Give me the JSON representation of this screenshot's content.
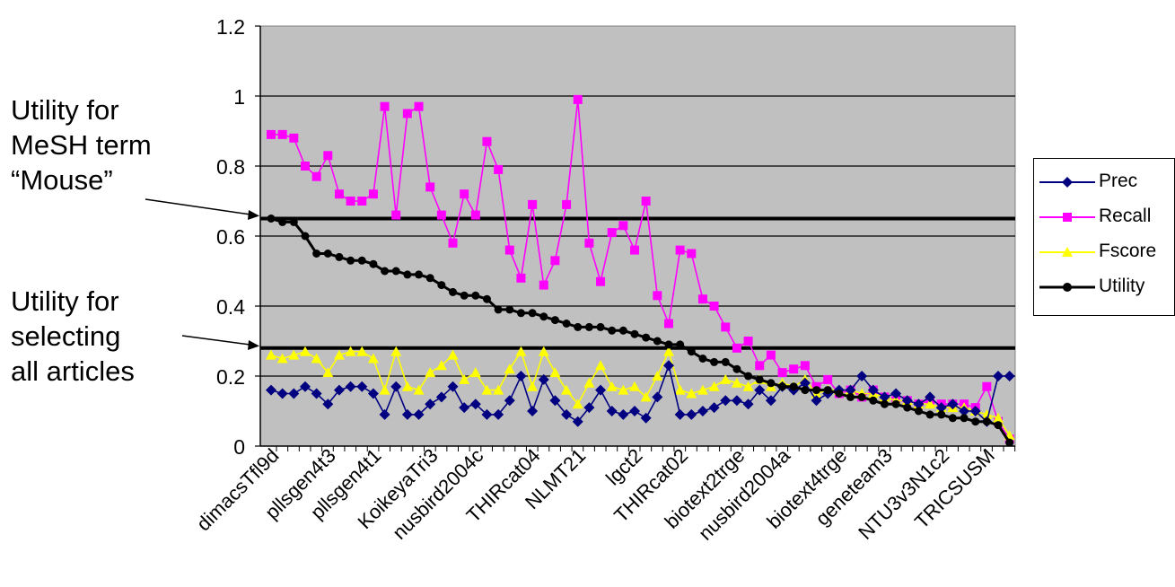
{
  "annotations": {
    "mesh_mouse": "Utility for\nMeSH term\n“Mouse”",
    "all_articles": "Utility for\nselecting\nall articles"
  },
  "chart_data": {
    "type": "line",
    "ylim": [
      0,
      1.2
    ],
    "yticks": [
      "0",
      "0.2",
      "0.4",
      "0.6",
      "0.8",
      "1",
      "1.2"
    ],
    "grid": true,
    "legend_position": "right",
    "plot_background": "#c0c0c0",
    "n_points": 66,
    "x_tick_labels": [
      "dimacsTfl9d",
      "pllsgen4t3",
      "pllsgen4t1",
      "KoikeyaTri3",
      "nusbird2004c",
      "THIRcat04",
      "NLMT21",
      "lgct2",
      "THIRcat02",
      "biotext2trge",
      "nusbird2004a",
      "biotext4trge",
      "geneteam3",
      "NTU3v3N1c2",
      "TRICSUSM"
    ],
    "x_tick_index": [
      0,
      5,
      9,
      14,
      18,
      23,
      27,
      32,
      36,
      41,
      45,
      50,
      54,
      59,
      63
    ],
    "reference_lines": [
      {
        "label": "Utility for MeSH term “Mouse”",
        "value": 0.65
      },
      {
        "label": "Utility for selecting all articles",
        "value": 0.28
      }
    ],
    "series": [
      {
        "name": "Prec",
        "color": "#000080",
        "marker": "diamond",
        "values": [
          0.16,
          0.15,
          0.15,
          0.17,
          0.15,
          0.12,
          0.16,
          0.17,
          0.17,
          0.15,
          0.09,
          0.17,
          0.09,
          0.09,
          0.12,
          0.14,
          0.17,
          0.11,
          0.12,
          0.09,
          0.09,
          0.13,
          0.2,
          0.1,
          0.19,
          0.13,
          0.09,
          0.07,
          0.11,
          0.16,
          0.1,
          0.09,
          0.1,
          0.08,
          0.14,
          0.23,
          0.09,
          0.09,
          0.1,
          0.11,
          0.13,
          0.13,
          0.12,
          0.16,
          0.13,
          0.17,
          0.16,
          0.18,
          0.13,
          0.15,
          0.16,
          0.16,
          0.2,
          0.16,
          0.14,
          0.15,
          0.13,
          0.12,
          0.14,
          0.11,
          0.12,
          0.1,
          0.1,
          0.07,
          0.2,
          0.2
        ]
      },
      {
        "name": "Recall",
        "color": "#ff00ff",
        "marker": "square",
        "values": [
          0.89,
          0.89,
          0.88,
          0.8,
          0.77,
          0.83,
          0.72,
          0.7,
          0.7,
          0.72,
          0.97,
          0.66,
          0.95,
          0.97,
          0.74,
          0.66,
          0.58,
          0.72,
          0.66,
          0.87,
          0.79,
          0.56,
          0.48,
          0.69,
          0.46,
          0.53,
          0.69,
          0.99,
          0.58,
          0.47,
          0.61,
          0.63,
          0.56,
          0.7,
          0.43,
          0.35,
          0.56,
          0.55,
          0.42,
          0.4,
          0.34,
          0.28,
          0.3,
          0.23,
          0.26,
          0.21,
          0.22,
          0.23,
          0.17,
          0.19,
          0.15,
          0.16,
          0.14,
          0.16,
          0.14,
          0.13,
          0.13,
          0.12,
          0.13,
          0.12,
          0.12,
          0.12,
          0.11,
          0.17,
          0.07,
          0.02
        ]
      },
      {
        "name": "Fscore",
        "color": "#ffff00",
        "marker": "triangle",
        "values": [
          0.26,
          0.25,
          0.26,
          0.27,
          0.25,
          0.21,
          0.26,
          0.27,
          0.27,
          0.25,
          0.16,
          0.27,
          0.17,
          0.16,
          0.21,
          0.23,
          0.26,
          0.19,
          0.21,
          0.16,
          0.16,
          0.22,
          0.27,
          0.17,
          0.27,
          0.21,
          0.16,
          0.12,
          0.18,
          0.23,
          0.17,
          0.16,
          0.17,
          0.14,
          0.2,
          0.27,
          0.16,
          0.15,
          0.16,
          0.17,
          0.19,
          0.18,
          0.17,
          0.19,
          0.17,
          0.18,
          0.17,
          0.19,
          0.15,
          0.16,
          0.16,
          0.16,
          0.15,
          0.15,
          0.14,
          0.13,
          0.13,
          0.12,
          0.12,
          0.11,
          0.11,
          0.11,
          0.1,
          0.09,
          0.08,
          0.03
        ]
      },
      {
        "name": "Utility",
        "color": "#000000",
        "marker": "circle",
        "values": [
          0.65,
          0.64,
          0.64,
          0.6,
          0.55,
          0.55,
          0.54,
          0.53,
          0.53,
          0.52,
          0.5,
          0.5,
          0.49,
          0.49,
          0.48,
          0.46,
          0.44,
          0.43,
          0.43,
          0.42,
          0.39,
          0.39,
          0.38,
          0.38,
          0.37,
          0.36,
          0.35,
          0.34,
          0.34,
          0.34,
          0.33,
          0.33,
          0.32,
          0.31,
          0.3,
          0.29,
          0.29,
          0.27,
          0.25,
          0.24,
          0.24,
          0.22,
          0.2,
          0.19,
          0.18,
          0.17,
          0.17,
          0.16,
          0.16,
          0.16,
          0.15,
          0.14,
          0.14,
          0.13,
          0.12,
          0.12,
          0.11,
          0.1,
          0.09,
          0.09,
          0.08,
          0.08,
          0.07,
          0.07,
          0.06,
          0.01
        ]
      }
    ]
  }
}
